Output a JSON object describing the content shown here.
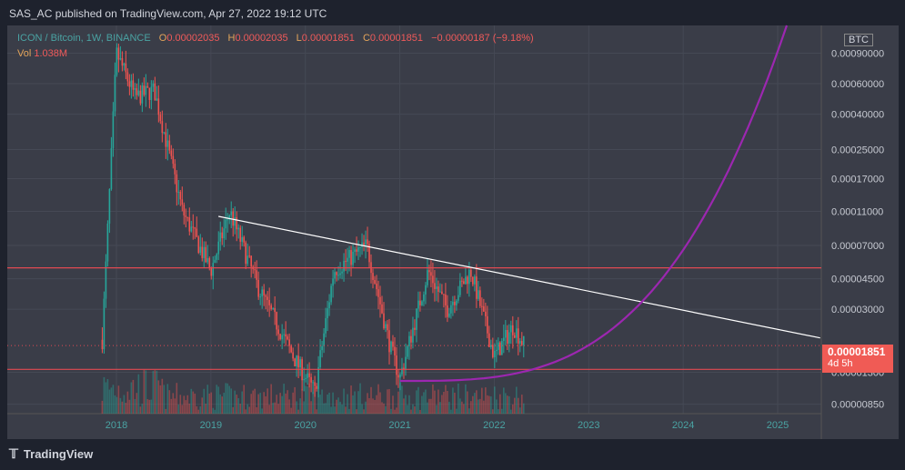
{
  "header": {
    "published": "SAS_AC published on TradingView.com, Apr 27, 2022 19:12 UTC"
  },
  "legend": {
    "symbol": "ICON / Bitcoin, 1W, BINANCE",
    "open_label": "O",
    "open": "0.00002035",
    "high_label": "H",
    "high": "0.00002035",
    "low_label": "L",
    "low": "0.00001851",
    "close_label": "C",
    "close": "0.00001851",
    "change": "−0.00000187 (−9.18%)",
    "vol_label": "Vol",
    "vol": "1.038M"
  },
  "price_badge": {
    "price": "0.00001851",
    "countdown": "4d 5h"
  },
  "currency_tag": "BTC",
  "footer": {
    "brand": "TradingView"
  },
  "colors": {
    "up": "#26a69a",
    "down": "#ef5350",
    "resistance": "#e04a52",
    "curve": "#9c27b0",
    "trend": "#ffffff"
  },
  "chart_data": {
    "type": "candlestick",
    "scale": "log",
    "yaxis_ticks": [
      "0.00090000",
      "0.00060000",
      "0.00040000",
      "0.00025000",
      "0.00017000",
      "0.00011000",
      "0.00007000",
      "0.00004500",
      "0.00003000",
      "0.00001300",
      "0.00000850"
    ],
    "xaxis_ticks": [
      "2018",
      "2019",
      "2020",
      "2021",
      "2022",
      "2023",
      "2024",
      "2025"
    ],
    "price_points": [
      {
        "date": "2017.85",
        "price": 2e-05
      },
      {
        "date": "2018.0",
        "price": 0.0009
      },
      {
        "date": "2018.2",
        "price": 0.0005
      },
      {
        "date": "2018.4",
        "price": 0.00055
      },
      {
        "date": "2018.7",
        "price": 0.00011
      },
      {
        "date": "2019.0",
        "price": 5e-05
      },
      {
        "date": "2019.2",
        "price": 0.00011
      },
      {
        "date": "2019.5",
        "price": 4e-05
      },
      {
        "date": "2019.9",
        "price": 1.5e-05
      },
      {
        "date": "2020.1",
        "price": 1e-05
      },
      {
        "date": "2020.3",
        "price": 5e-05
      },
      {
        "date": "2020.65",
        "price": 7e-05
      },
      {
        "date": "2020.9",
        "price": 1.8e-05
      },
      {
        "date": "2021.0",
        "price": 1.2e-05
      },
      {
        "date": "2021.3",
        "price": 5e-05
      },
      {
        "date": "2021.5",
        "price": 3e-05
      },
      {
        "date": "2021.75",
        "price": 5e-05
      },
      {
        "date": "2022.0",
        "price": 1.6e-05
      },
      {
        "date": "2022.2",
        "price": 2.4e-05
      },
      {
        "date": "2022.32",
        "price": 1.851e-05
      }
    ],
    "resistance_level": 5.2e-05,
    "support_level": 1.35e-05,
    "trendline": [
      {
        "date": "2019.08",
        "price": 0.000103
      },
      {
        "date": "2025.45",
        "price": 2.05e-05
      }
    ],
    "current_price": 1.851e-05
  }
}
